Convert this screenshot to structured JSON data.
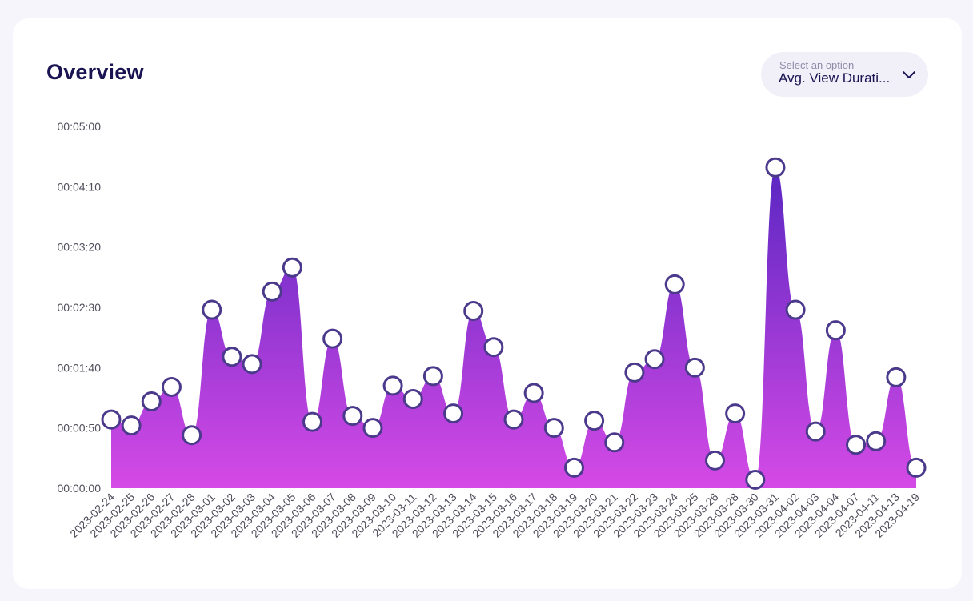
{
  "card": {
    "title": "Overview",
    "metric_select": {
      "placeholder": "Select an option",
      "value": "Avg. View Durati..."
    }
  },
  "colors": {
    "gradient_top": "#5a26c2",
    "gradient_bottom": "#d54ae6",
    "marker_stroke": "#4b3a8c",
    "marker_fill": "#ffffff",
    "title": "#1a1452"
  },
  "chart_data": {
    "type": "area",
    "title": "",
    "xlabel": "",
    "ylabel": "",
    "y_unit": "seconds",
    "ylim": [
      0,
      300
    ],
    "y_ticks": [
      0,
      50,
      100,
      150,
      200,
      250,
      300
    ],
    "y_tick_labels": [
      "00:00:00",
      "00:00:50",
      "00:01:40",
      "00:02:30",
      "00:03:20",
      "00:04:10",
      "00:05:00"
    ],
    "grid": false,
    "legend": "none",
    "curve": "smooth",
    "categories": [
      "2023-02-24",
      "2023-02-25",
      "2023-02-26",
      "2023-02-27",
      "2023-02-28",
      "2023-03-01",
      "2023-03-02",
      "2023-03-03",
      "2023-03-04",
      "2023-03-05",
      "2023-03-06",
      "2023-03-07",
      "2023-03-08",
      "2023-03-09",
      "2023-03-10",
      "2023-03-11",
      "2023-03-12",
      "2023-03-13",
      "2023-03-14",
      "2023-03-15",
      "2023-03-16",
      "2023-03-17",
      "2023-03-18",
      "2023-03-19",
      "2023-03-20",
      "2023-03-21",
      "2023-03-22",
      "2023-03-23",
      "2023-03-24",
      "2023-03-25",
      "2023-03-26",
      "2023-03-28",
      "2023-03-30",
      "2023-03-31",
      "2023-04-02",
      "2023-04-03",
      "2023-04-04",
      "2023-04-07",
      "2023-04-11",
      "2023-04-13",
      "2023-04-19"
    ],
    "values": [
      57,
      52,
      72,
      84,
      44,
      148,
      109,
      103,
      163,
      183,
      55,
      124,
      60,
      50,
      85,
      74,
      93,
      62,
      147,
      117,
      57,
      79,
      50,
      17,
      56,
      38,
      96,
      107,
      169,
      100,
      23,
      62,
      7,
      266,
      148,
      47,
      131,
      36,
      39,
      92,
      17
    ]
  }
}
